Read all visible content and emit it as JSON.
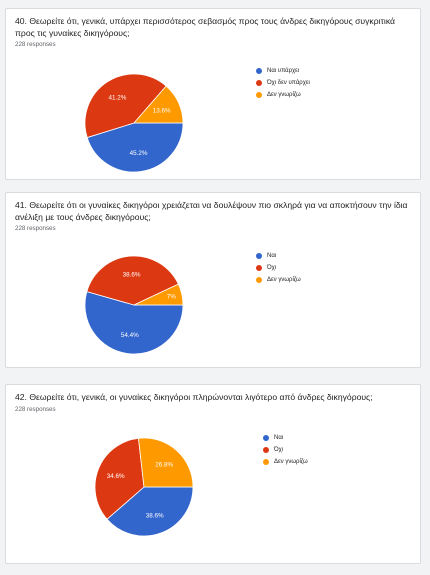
{
  "colors": {
    "blue": "#3366cc",
    "red": "#dc3912",
    "orange": "#ff9900"
  },
  "chart_data": [
    {
      "type": "pie",
      "title": "40. Θεωρείτε ότι, γενικά, υπάρχει περισσότερος σεβασμός προς τους άνδρες δικηγόρους συγκριτικά προς τις γυναίκες δικηγόρους;",
      "responses": "228 responses",
      "categories": [
        "Ναι υπάρχει",
        "Όχι δεν υπάρχει",
        "Δεν γνωρίζω"
      ],
      "values": [
        45.2,
        41.2,
        13.6
      ],
      "labels": [
        "45.2%",
        "41.2%",
        "13.6%"
      ]
    },
    {
      "type": "pie",
      "title": "41. Θεωρείτε ότι οι γυναίκες δικηγόροι χρειάζεται να δουλέψουν πιο σκληρά για να αποκτήσουν την ίδια ανέλιξη με τους άνδρες δικηγόρους;",
      "responses": "228 responses",
      "categories": [
        "Ναι",
        "Όχι",
        "Δεν γνωρίζω"
      ],
      "values": [
        54.4,
        38.6,
        7.0
      ],
      "labels": [
        "54.4%",
        "38.6%",
        "7%"
      ]
    },
    {
      "type": "pie",
      "title": "42. Θεωρείτε ότι, γενικά, οι γυναίκες δικηγόροι πληρώνονται λιγότερο από άνδρες δικηγόρους;",
      "responses": "228 responses",
      "categories": [
        "Ναι",
        "Όχι",
        "Δεν γνωρίζω"
      ],
      "values": [
        38.6,
        34.6,
        26.8
      ],
      "labels": [
        "38.6%",
        "34.6%",
        "26.8%"
      ]
    }
  ]
}
